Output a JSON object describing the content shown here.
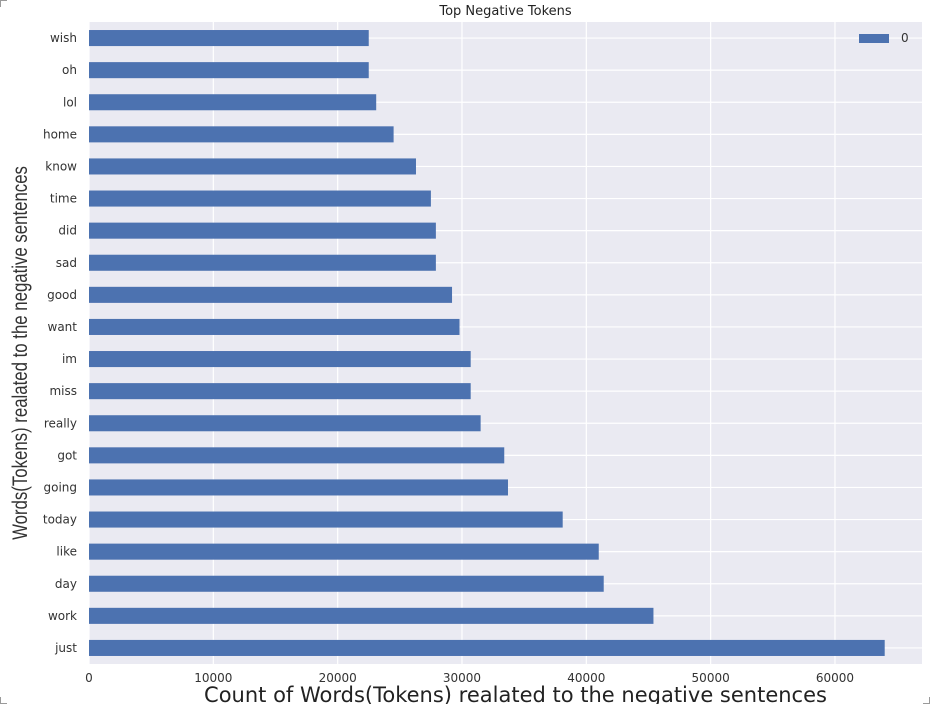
{
  "chart_data": {
    "type": "bar",
    "orientation": "horizontal",
    "title": "Top Negative Tokens",
    "xlabel": "Count of Words(Tokens) realated to the negative sentences",
    "ylabel": "Words(Tokens) realated to the negative sentences",
    "categories": [
      "just",
      "work",
      "day",
      "like",
      "today",
      "going",
      "got",
      "really",
      "miss",
      "im",
      "want",
      "good",
      "sad",
      "did",
      "time",
      "know",
      "home",
      "lol",
      "oh",
      "wish"
    ],
    "series": [
      {
        "name": "0",
        "color": "#4c72b0",
        "values": [
          64000,
          45400,
          41400,
          41000,
          38100,
          33700,
          33400,
          31500,
          30700,
          30700,
          29800,
          29200,
          27900,
          27900,
          27500,
          26300,
          24500,
          23100,
          22500,
          22500
        ]
      }
    ],
    "xlim": [
      0,
      67000
    ],
    "xticks": [
      0,
      10000,
      20000,
      30000,
      40000,
      50000,
      60000
    ],
    "xtick_labels": [
      "0",
      "10000",
      "20000",
      "30000",
      "40000",
      "50000",
      "60000"
    ],
    "grid": true,
    "legend_position": "top-right",
    "background_color": "#eaeaf2"
  }
}
